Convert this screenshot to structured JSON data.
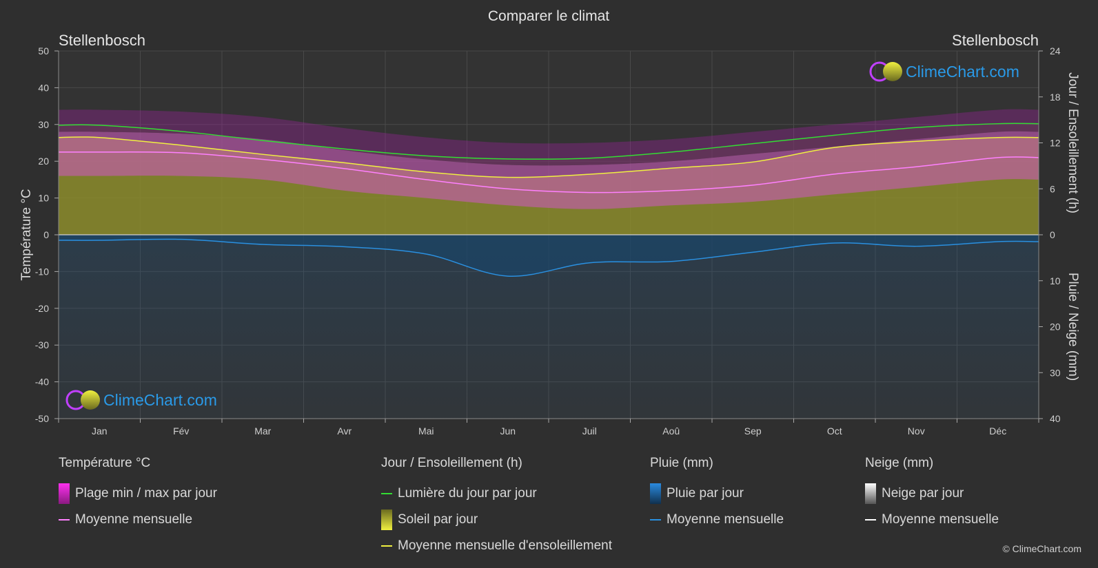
{
  "header": {
    "title": "Comparer le climat",
    "location_left": "Stellenbosch",
    "location_right": "Stellenbosch"
  },
  "logo": {
    "text": "ClimeChart.com"
  },
  "copyright": "© ClimeChart.com",
  "colors": {
    "background": "#2f2f2f",
    "temp_range": "#d020c8",
    "temp_mean": "#ff80ff",
    "daylight": "#33dd33",
    "sunshine_fill": "#8c8c2c",
    "sunshine_mean": "#f0f040",
    "rain": "#1f6fb0",
    "rain_mean": "#2a90e0",
    "snow_mean": "#ffffff",
    "logo_text": "#2a9ae8"
  },
  "legend": {
    "temperature": {
      "title": "Température °C",
      "items": [
        "Plage min / max par jour",
        "Moyenne mensuelle"
      ]
    },
    "sun": {
      "title": "Jour / Ensoleillement (h)",
      "items": [
        "Lumière du jour par jour",
        "Soleil par jour",
        "Moyenne mensuelle d'ensoleillement"
      ]
    },
    "rain": {
      "title": "Pluie (mm)",
      "items": [
        "Pluie par jour",
        "Moyenne mensuelle"
      ]
    },
    "snow": {
      "title": "Neige (mm)",
      "items": [
        "Neige par jour",
        "Moyenne mensuelle"
      ]
    }
  },
  "chart_data": {
    "type": "area",
    "title": "Comparer le climat",
    "categories": [
      "Jan",
      "Fév",
      "Mar",
      "Avr",
      "Mai",
      "Jun",
      "Juil",
      "Aoû",
      "Sep",
      "Oct",
      "Nov",
      "Déc"
    ],
    "left_axis": {
      "label": "Température °C",
      "range": [
        -50,
        50
      ],
      "ticks": [
        50,
        40,
        30,
        20,
        10,
        0,
        -10,
        -20,
        -30,
        -40,
        -50
      ]
    },
    "right_axis_top": {
      "label": "Jour / Ensoleillement (h)",
      "range": [
        0,
        24
      ],
      "ticks": [
        24,
        18,
        12,
        6,
        0
      ]
    },
    "right_axis_bottom": {
      "label": "Pluie / Neige (mm)",
      "range": [
        0,
        40
      ],
      "ticks": [
        0,
        10,
        20,
        30,
        40
      ]
    },
    "grid": true,
    "series": [
      {
        "name": "Plage min / max par jour",
        "kind": "band",
        "axis": "temperature",
        "min": [
          16,
          16,
          15,
          12,
          10,
          8,
          7,
          8,
          9,
          11,
          13,
          15
        ],
        "max": [
          28,
          27.5,
          26,
          23,
          20.5,
          19,
          19,
          20,
          22,
          24,
          26,
          28
        ]
      },
      {
        "name": "Moyenne mensuelle",
        "kind": "line",
        "axis": "temperature",
        "values": [
          22.5,
          22.3,
          20.5,
          18,
          15,
          12.5,
          11.5,
          12,
          13.5,
          16.5,
          18.5,
          21
        ]
      },
      {
        "name": "Lumière du jour par jour",
        "kind": "line",
        "axis": "hours",
        "values": [
          14.3,
          13.5,
          12.3,
          11.2,
          10.3,
          9.9,
          10.0,
          10.8,
          11.9,
          13.0,
          14.0,
          14.5
        ]
      },
      {
        "name": "Moyenne mensuelle d'ensoleillement",
        "kind": "line",
        "axis": "hours",
        "values": [
          12.7,
          11.7,
          10.5,
          9.4,
          8.2,
          7.5,
          7.9,
          8.7,
          9.5,
          11.4,
          12.2,
          12.7
        ]
      },
      {
        "name": "Moyenne mensuelle",
        "kind": "line",
        "axis": "rain_mm",
        "values": [
          1.2,
          1.0,
          2.1,
          2.6,
          4.2,
          9.0,
          6.1,
          5.8,
          3.8,
          1.8,
          2.5,
          1.5
        ]
      }
    ]
  }
}
